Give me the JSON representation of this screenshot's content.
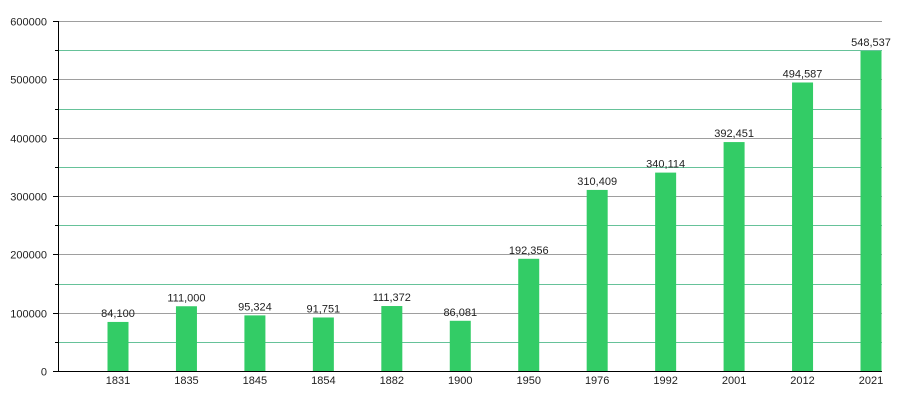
{
  "chart_data": {
    "type": "bar",
    "title": "",
    "xlabel": "",
    "ylabel": "",
    "categories": [
      "1831",
      "1835",
      "1845",
      "1854",
      "1882",
      "1900",
      "1950",
      "1976",
      "1992",
      "2001",
      "2012",
      "2021"
    ],
    "values": [
      84100,
      111000,
      95324,
      91751,
      111372,
      86081,
      192356,
      310409,
      340114,
      392451,
      494587,
      548537
    ],
    "data_labels": [
      "84,100",
      "111,000",
      "95,324",
      "91,751",
      "111,372",
      "86,081",
      "192,356",
      "310,409",
      "340,114",
      "392,451",
      "494,587",
      "548,537"
    ],
    "ylim": [
      0,
      600000
    ],
    "y_ticks": [
      0,
      100000,
      200000,
      300000,
      400000,
      500000,
      600000
    ],
    "y_tick_labels": [
      "0",
      "100000",
      "200000",
      "300000",
      "400000",
      "500000",
      "600000"
    ],
    "grid": true,
    "colors": {
      "bar": "#33cc66",
      "major_grid": "#9e9e9e",
      "minor_grid": "#66c299",
      "axis": "#000000"
    }
  }
}
